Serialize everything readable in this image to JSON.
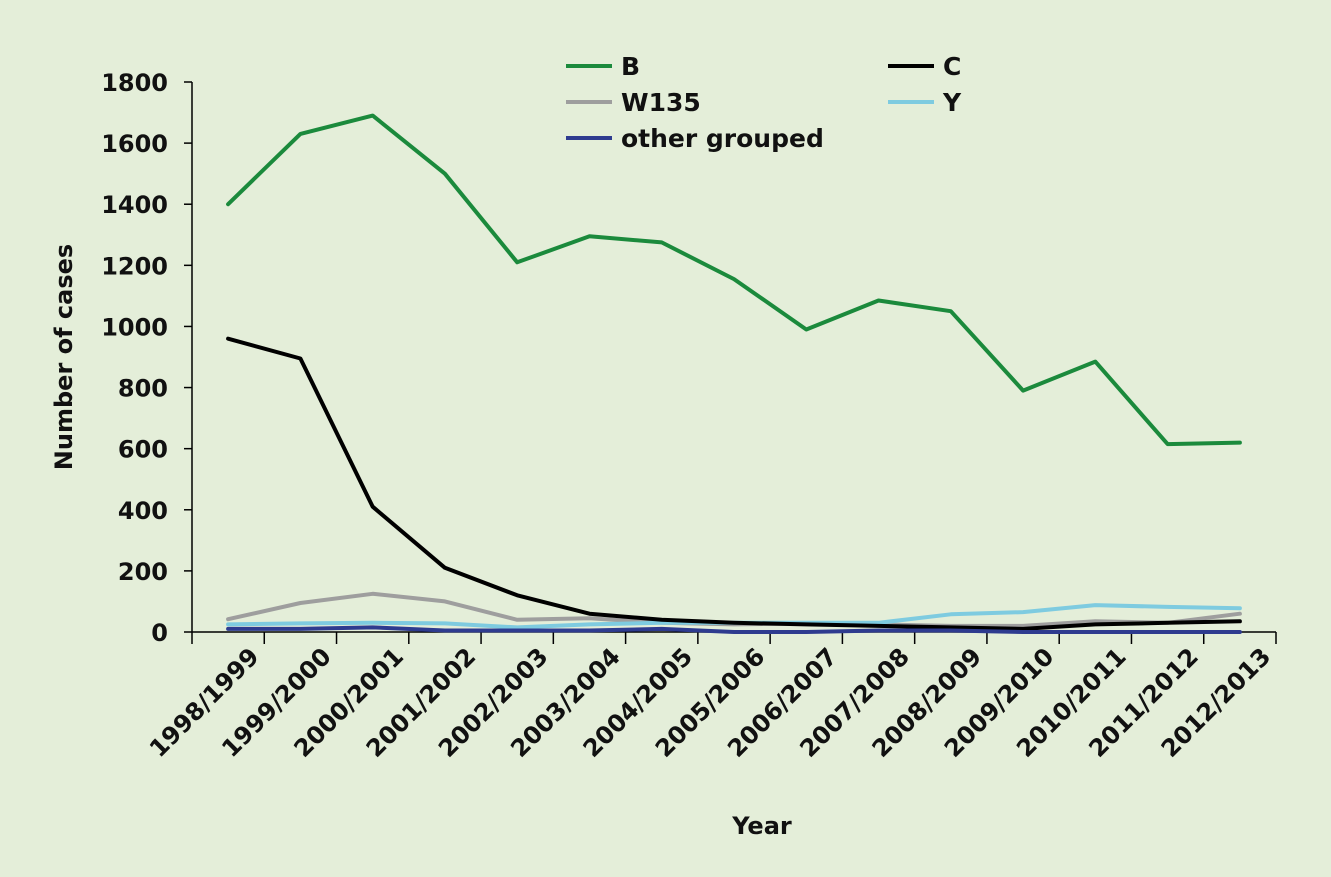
{
  "chart_data": {
    "type": "line",
    "title": "",
    "xlabel": "Year",
    "ylabel": "Number of cases",
    "ylim": [
      0,
      1800
    ],
    "yticks": [
      0,
      200,
      400,
      600,
      800,
      1000,
      1200,
      1400,
      1600,
      1800
    ],
    "grid": false,
    "legend_position": "top",
    "categories": [
      "1998/1999",
      "1999/2000",
      "2000/2001",
      "2001/2002",
      "2002/2003",
      "2003/2004",
      "2004/2005",
      "2005/2006",
      "2006/2007",
      "2007/2008",
      "2008/2009",
      "2009/2010",
      "2010/2011",
      "2011/2012",
      "2012/2013"
    ],
    "series": [
      {
        "name": "B",
        "color": "#1b8a3c",
        "values": [
          1400,
          1630,
          1690,
          1500,
          1210,
          1295,
          1275,
          1155,
          990,
          1085,
          1050,
          790,
          885,
          615,
          620
        ]
      },
      {
        "name": "C",
        "color": "#000000",
        "values": [
          960,
          895,
          410,
          210,
          120,
          60,
          40,
          30,
          25,
          20,
          15,
          10,
          25,
          30,
          35
        ]
      },
      {
        "name": "W135",
        "color": "#9e9e9e",
        "values": [
          42,
          95,
          125,
          100,
          40,
          45,
          30,
          25,
          28,
          25,
          20,
          20,
          35,
          30,
          60
        ]
      },
      {
        "name": "Y",
        "color": "#7ecbe0",
        "values": [
          25,
          28,
          30,
          28,
          15,
          25,
          30,
          30,
          30,
          30,
          58,
          65,
          88,
          82,
          78
        ]
      },
      {
        "name": "other grouped",
        "color": "#2e3b8f",
        "values": [
          10,
          10,
          15,
          5,
          5,
          5,
          10,
          0,
          0,
          5,
          5,
          0,
          0,
          0,
          0
        ]
      }
    ]
  }
}
